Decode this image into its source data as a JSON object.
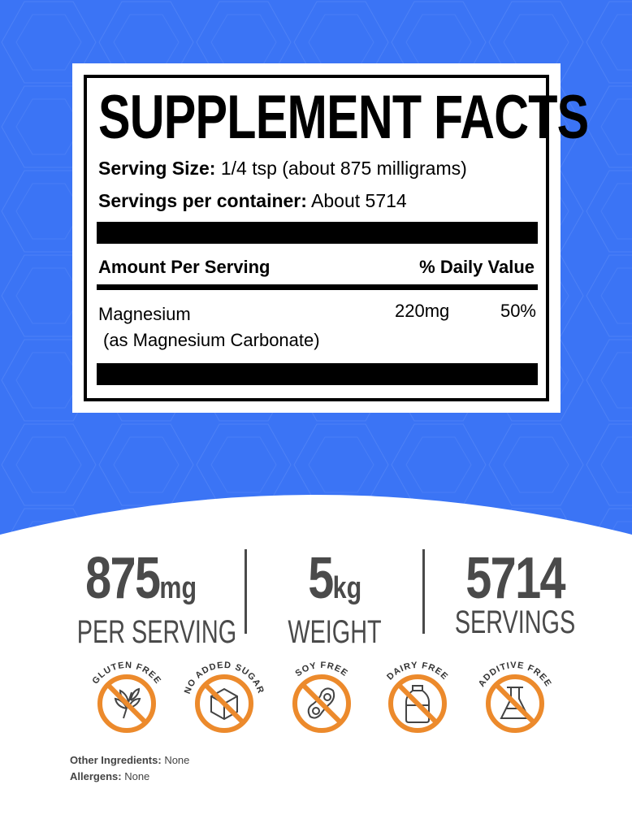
{
  "colors": {
    "background_blue": "#3b74f5",
    "icon_orange": "#ec8a2c",
    "stat_gray": "#4a4a4a"
  },
  "facts": {
    "title": "SUPPLEMENT FACTS",
    "serving_size_label": "Serving Size:",
    "serving_size_value": "1/4 tsp (about 875 milligrams)",
    "servings_label": "Servings per container:",
    "servings_value": "About 5714",
    "amount_header": "Amount Per Serving",
    "dv_header": "% Daily Value",
    "ingredient_name": "Magnesium",
    "ingredient_form": "(as Magnesium Carbonate)",
    "ingredient_amount": "220mg",
    "ingredient_dv": "50%"
  },
  "stats": [
    {
      "value": "875",
      "unit": "mg",
      "label": "PER SERVING"
    },
    {
      "value": "5",
      "unit": "kg",
      "label": "WEIGHT"
    },
    {
      "value": "5714",
      "unit": "",
      "label": "SERVINGS"
    }
  ],
  "badges": [
    {
      "label": "GLUTEN FREE",
      "icon": "wheat-icon"
    },
    {
      "label": "NO ADDED SUGAR",
      "icon": "sugar-cube-icon"
    },
    {
      "label": "SOY FREE",
      "icon": "soybean-icon"
    },
    {
      "label": "DAIRY FREE",
      "icon": "milk-bottle-icon"
    },
    {
      "label": "ADDITIVE FREE",
      "icon": "flask-icon"
    }
  ],
  "footer": {
    "other_label": "Other Ingredients:",
    "other_value": "None",
    "allergens_label": "Allergens:",
    "allergens_value": "None"
  }
}
